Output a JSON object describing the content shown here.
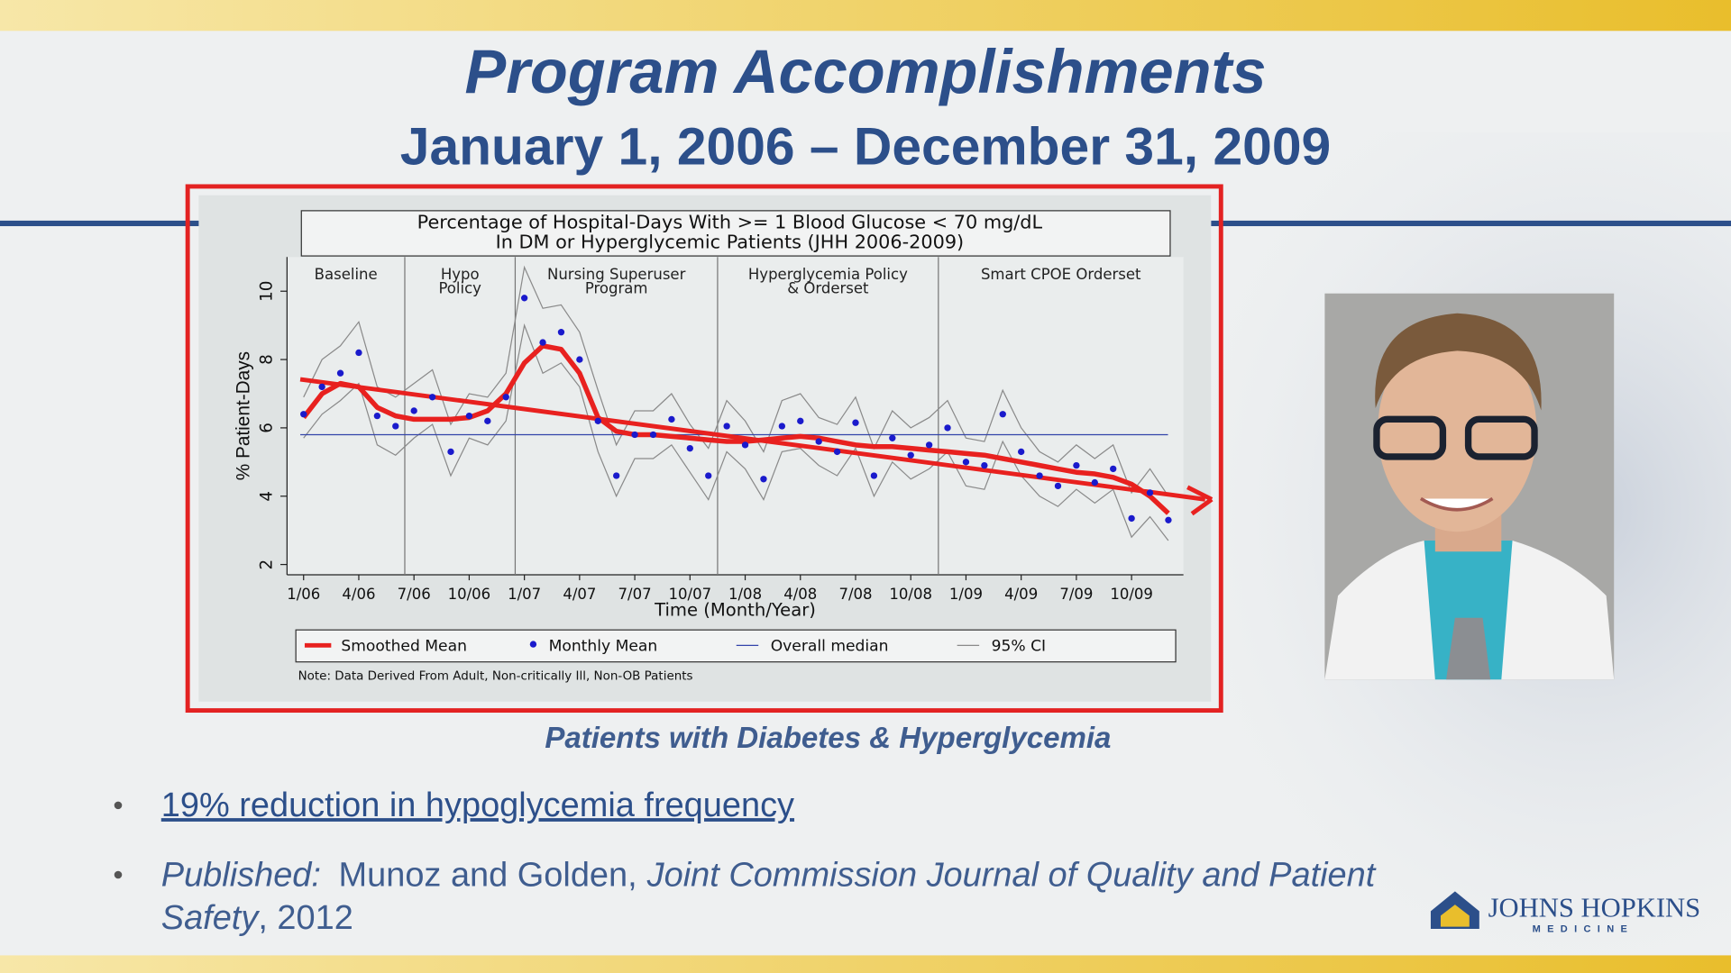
{
  "header": {
    "title": "Program Accomplishments",
    "subtitle": "January 1, 2006 – December 31, 2009"
  },
  "caption": "Patients with Diabetes & Hyperglycemia",
  "bullets": [
    {
      "parts": [
        "19% reduction in hypoglycemia frequency"
      ]
    },
    {
      "parts": [
        "Published:",
        "Munoz and Golden,",
        "Joint Commission Journal of Quality and Patient",
        "Safety",
        ", 2012"
      ]
    }
  ],
  "logo": {
    "name": "JOHNS HOPKINS",
    "sub": "MEDICINE"
  },
  "chart_data": {
    "type": "line",
    "title": [
      "Percentage of Hospital-Days With >= 1 Blood Glucose < 70 mg/dL",
      "In DM or Hyperglycemic Patients (JHH 2006-2009)"
    ],
    "x_label": "Time (Month/Year)",
    "y_label": "% Patient-Days",
    "note": "Note: Data Derived From Adult, Non-critically Ill, Non-OB Patients",
    "categories": [
      "1/06",
      null,
      null,
      "4/06",
      null,
      null,
      "7/06",
      null,
      null,
      "10/06",
      null,
      null,
      "1/07",
      null,
      null,
      "4/07",
      null,
      null,
      "7/07",
      null,
      null,
      "10/07",
      null,
      null,
      "1/08",
      null,
      null,
      "4/08",
      null,
      null,
      "7/08",
      null,
      null,
      "10/08",
      null,
      null,
      "1/09",
      null,
      null,
      "4/09",
      null,
      null,
      "7/09",
      null,
      null,
      "10/09",
      null,
      null
    ],
    "ylim": [
      1.7,
      11
    ],
    "yticks": [
      2,
      4,
      6,
      8,
      10
    ],
    "phases": [
      {
        "label": [
          "Baseline"
        ],
        "start_index": 0
      },
      {
        "label": [
          "Hypo",
          "Policy"
        ],
        "start_index": 6
      },
      {
        "label": [
          "Nursing Superuser",
          "Program"
        ],
        "start_index": 12
      },
      {
        "label": [
          "Hyperglycemia Policy",
          "& Orderset"
        ],
        "start_index": 23
      },
      {
        "label": [
          "Smart CPOE Orderset"
        ],
        "start_index": 35
      }
    ],
    "series": [
      {
        "name": "Smoothed Mean",
        "color": "#e8211f",
        "values": [
          6.3,
          7.0,
          7.3,
          7.2,
          6.6,
          6.35,
          6.25,
          6.25,
          6.25,
          6.3,
          6.5,
          7.0,
          7.9,
          8.4,
          8.3,
          7.6,
          6.3,
          5.9,
          5.8,
          5.8,
          5.75,
          5.7,
          5.65,
          5.6,
          5.6,
          5.65,
          5.7,
          5.75,
          5.7,
          5.6,
          5.5,
          5.45,
          5.45,
          5.4,
          5.35,
          5.3,
          5.25,
          5.2,
          5.1,
          5.0,
          4.9,
          4.8,
          4.7,
          4.65,
          4.55,
          4.35,
          4.0,
          3.5
        ]
      },
      {
        "name": "Monthly Mean",
        "color": "#1a1acc",
        "values": [
          6.4,
          7.2,
          7.6,
          8.2,
          6.35,
          6.05,
          6.5,
          6.9,
          5.3,
          6.35,
          6.2,
          6.9,
          9.8,
          8.5,
          8.8,
          8.0,
          6.2,
          4.6,
          5.8,
          5.8,
          6.25,
          5.4,
          4.6,
          6.05,
          5.5,
          4.5,
          6.05,
          6.2,
          5.6,
          5.3,
          6.15,
          4.6,
          5.7,
          5.2,
          5.5,
          6.0,
          5.0,
          4.9,
          6.4,
          5.3,
          4.6,
          4.3,
          4.9,
          4.4,
          4.8,
          3.35,
          4.1,
          3.3
        ]
      }
    ],
    "median": {
      "name": "Overall median",
      "color": "#3344aa",
      "value": 5.8
    },
    "ci": {
      "name": "95% CI",
      "color": "#8a8a8a",
      "upper": [
        6.9,
        8.0,
        8.4,
        9.1,
        7.2,
        6.9,
        7.3,
        7.7,
        6.1,
        7.0,
        6.9,
        7.6,
        10.7,
        9.5,
        9.6,
        8.8,
        7.1,
        5.5,
        6.5,
        6.5,
        7.0,
        6.1,
        5.4,
        6.8,
        6.2,
        5.3,
        6.8,
        7.0,
        6.3,
        6.1,
        6.9,
        5.4,
        6.5,
        6.0,
        6.3,
        6.8,
        5.7,
        5.6,
        7.1,
        6.0,
        5.3,
        5.0,
        5.5,
        5.1,
        5.5,
        4.1,
        4.8,
        4.0
      ],
      "lower": [
        5.7,
        6.4,
        6.8,
        7.3,
        5.5,
        5.2,
        5.7,
        6.1,
        4.6,
        5.7,
        5.5,
        6.2,
        9.0,
        7.6,
        7.9,
        7.2,
        5.3,
        4.0,
        5.1,
        5.1,
        5.5,
        4.7,
        3.9,
        5.3,
        4.8,
        3.9,
        5.3,
        5.4,
        4.9,
        4.6,
        5.4,
        4.0,
        5.0,
        4.5,
        4.8,
        5.3,
        4.3,
        4.2,
        5.6,
        4.6,
        4.0,
        3.7,
        4.2,
        3.8,
        4.2,
        2.8,
        3.4,
        2.7
      ]
    },
    "trend": {
      "color": "#e8211f",
      "values": [
        7.42,
        4.05
      ]
    }
  }
}
